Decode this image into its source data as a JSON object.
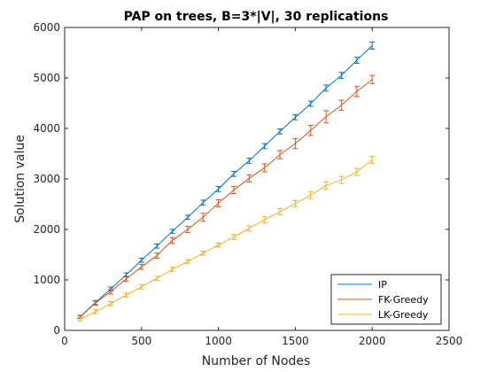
{
  "chart_data": {
    "type": "line",
    "title": "PAP on trees, B=3*|V|, 30 replications",
    "xlabel": "Number of Nodes",
    "ylabel": "Solution value",
    "xlim": [
      0,
      2500
    ],
    "ylim": [
      0,
      6000
    ],
    "xticks": [
      "0",
      "500",
      "1000",
      "1500",
      "2000",
      "2500"
    ],
    "yticks": [
      "0",
      "1000",
      "2000",
      "3000",
      "4000",
      "5000",
      "6000"
    ],
    "grid": false,
    "legend_position": "bottom-right",
    "x": [
      100,
      200,
      300,
      400,
      500,
      600,
      700,
      800,
      900,
      1000,
      1100,
      1200,
      1300,
      1400,
      1500,
      1600,
      1700,
      1800,
      1900,
      2000
    ],
    "series": [
      {
        "name": "IP",
        "color": "#0072BD",
        "values": [
          270,
          550,
          820,
          1100,
          1390,
          1670,
          1960,
          2240,
          2530,
          2800,
          3100,
          3360,
          3650,
          3940,
          4220,
          4490,
          4800,
          5050,
          5350,
          5640
        ],
        "errors": [
          30,
          40,
          40,
          40,
          40,
          40,
          40,
          40,
          50,
          50,
          50,
          50,
          50,
          50,
          50,
          50,
          60,
          60,
          60,
          70
        ]
      },
      {
        "name": "FK-Greedy",
        "color": "#D95319",
        "values": [
          265,
          540,
          770,
          1020,
          1260,
          1480,
          1780,
          2000,
          2240,
          2520,
          2780,
          3010,
          3220,
          3480,
          3700,
          3960,
          4230,
          4460,
          4730,
          4970
        ],
        "errors": [
          30,
          40,
          50,
          50,
          50,
          50,
          60,
          60,
          80,
          70,
          70,
          70,
          80,
          80,
          100,
          100,
          120,
          100,
          100,
          80
        ]
      },
      {
        "name": "LK-Greedy",
        "color": "#EDB120",
        "values": [
          220,
          370,
          530,
          700,
          860,
          1030,
          1210,
          1360,
          1530,
          1690,
          1850,
          2020,
          2190,
          2350,
          2510,
          2680,
          2870,
          2980,
          3140,
          3380
        ],
        "errors": [
          40,
          40,
          40,
          40,
          40,
          40,
          40,
          40,
          40,
          40,
          50,
          50,
          60,
          60,
          60,
          70,
          70,
          70,
          70,
          70
        ]
      }
    ]
  }
}
